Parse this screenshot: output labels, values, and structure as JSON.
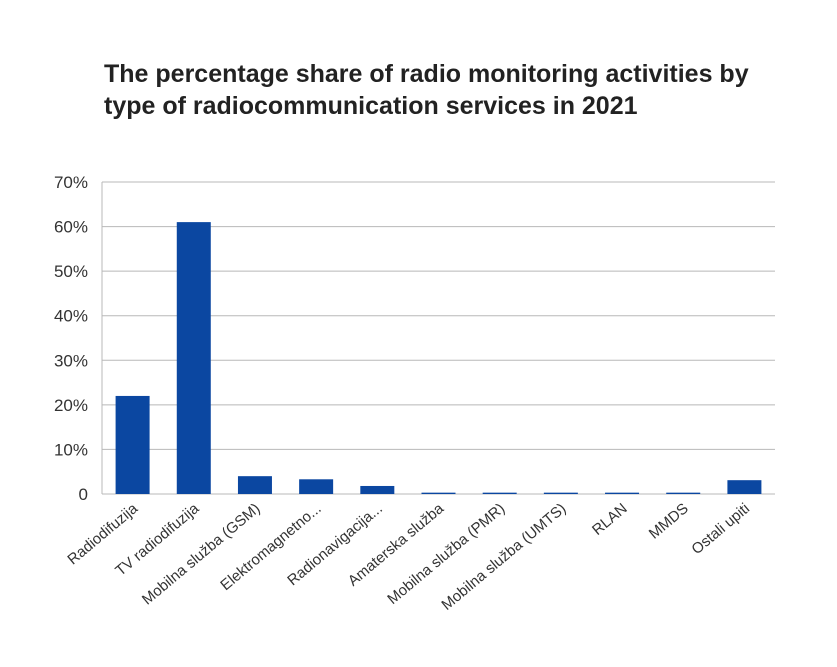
{
  "chart_data": {
    "type": "bar",
    "title": "The percentage share of radio monitoring activities by type of radiocommunication services in 2021",
    "xlabel": "",
    "ylabel": "",
    "categories": [
      "Radiodifuzija",
      "TV radiodifuzija",
      "Mobilna služba (GSM)",
      "Elektromagnetno...",
      "Radionavigacija...",
      "Amaterska služba",
      "Mobilna služba (PMR)",
      "Mobilna služba (UMTS)",
      "RLAN",
      "MMDS",
      "Ostali upiti"
    ],
    "values": [
      22,
      61,
      4,
      3.3,
      1.8,
      0.3,
      0.3,
      0.3,
      0.3,
      0.3,
      3.1
    ],
    "ylim": [
      0,
      70
    ],
    "yticks": [
      0,
      10,
      20,
      30,
      40,
      50,
      60,
      70
    ],
    "ytick_labels": [
      "0",
      "10%",
      "20%",
      "30%",
      "40%",
      "50%",
      "60%",
      "70%"
    ],
    "grid": true,
    "bar_color": "#0b47a1"
  }
}
